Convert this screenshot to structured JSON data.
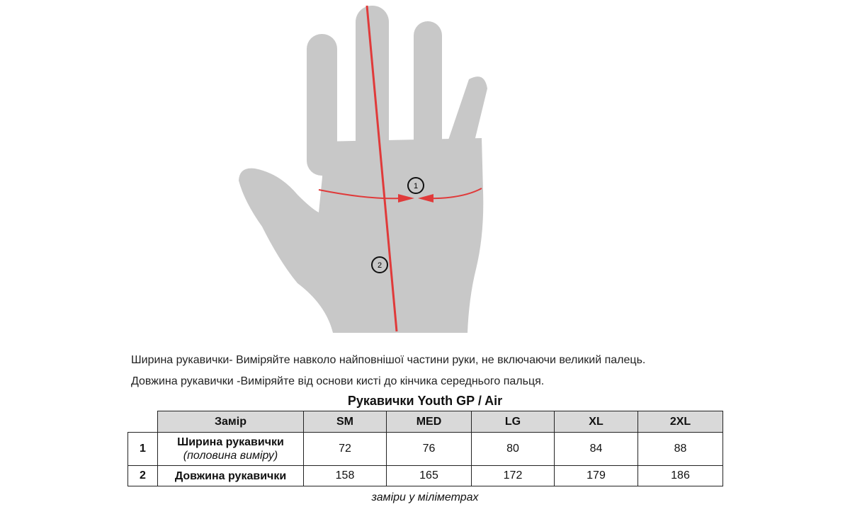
{
  "diagram": {
    "marker_1": "1",
    "marker_2": "2",
    "hand_color": "#c8c8c8",
    "line_color": "#e03a3a"
  },
  "instructions": [
    "Ширина рукавички- Виміряйте навколо найповнішої частини руки, не включаючи великий палець.",
    "Довжина рукавички -Виміряйте від основи кисті до кінчика середнього пальця."
  ],
  "table": {
    "title": "Рукавички Youth GP / Air",
    "headers": [
      "Замір",
      "SM",
      "MED",
      "LG",
      "XL",
      "2XL"
    ],
    "rows": [
      {
        "num": "1",
        "label": "Ширина рукавички",
        "sublabel": "(половина виміру)",
        "values": [
          "72",
          "76",
          "80",
          "84",
          "88"
        ]
      },
      {
        "num": "2",
        "label": "Довжина рукавички",
        "values": [
          "158",
          "165",
          "172",
          "179",
          "186"
        ]
      }
    ],
    "note": "заміри у міліметрах"
  }
}
